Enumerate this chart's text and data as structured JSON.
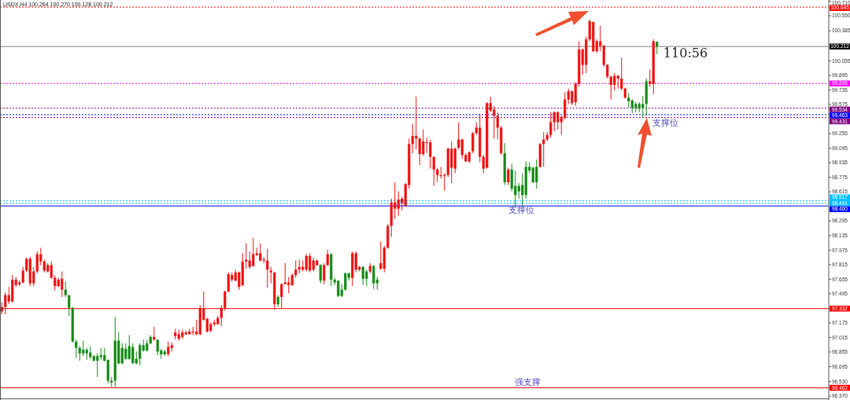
{
  "chart_data": {
    "type": "candlestick",
    "title": "USDX,H4  100.264 100.270 100.128 100.212",
    "categories": [
      null,
      null,
      null,
      null,
      null,
      null,
      null,
      null,
      null,
      null,
      null,
      null,
      null,
      null,
      null,
      null,
      null,
      null,
      null,
      null,
      null,
      null,
      null,
      null,
      null,
      null,
      null,
      null,
      null,
      null,
      null,
      null,
      null,
      null,
      null,
      null,
      null,
      null,
      null,
      null,
      null,
      null,
      null,
      null,
      null,
      null,
      null,
      null,
      null,
      null,
      null,
      null,
      null,
      null,
      null,
      null,
      null,
      null,
      null,
      null,
      null,
      null,
      null,
      null,
      null,
      null,
      null,
      null,
      null,
      null,
      null,
      null,
      null,
      null,
      null,
      null,
      null,
      null,
      null,
      null,
      null,
      null,
      null,
      null,
      null,
      null,
      null,
      null,
      null,
      null,
      null,
      null,
      null,
      null,
      null,
      null,
      null,
      null,
      null,
      null,
      null,
      null,
      null,
      null,
      null,
      null,
      null,
      null,
      null,
      null,
      null,
      null,
      null,
      null,
      null,
      null,
      null,
      null,
      null,
      null,
      null,
      null,
      null,
      null,
      null,
      null,
      null,
      null,
      null,
      null,
      null,
      null,
      null,
      null,
      null,
      null,
      null,
      null,
      null,
      null,
      null,
      null,
      null,
      null,
      null,
      null,
      null,
      null,
      null,
      null,
      null,
      null,
      null,
      null,
      null,
      null,
      null,
      null,
      null,
      null,
      null,
      null,
      null,
      null,
      null,
      null,
      null,
      null,
      null,
      null,
      null,
      null,
      null,
      null,
      null,
      null,
      null,
      null,
      null,
      null,
      null,
      null,
      null,
      null,
      null,
      null,
      null,
      null,
      null,
      null,
      null,
      null,
      null,
      null,
      null,
      null,
      null,
      null,
      null,
      null,
      null,
      null,
      null,
      null,
      null,
      null,
      null,
      null,
      null,
      null,
      null,
      null,
      null,
      null,
      null,
      null,
      null,
      null,
      null,
      null,
      null,
      null,
      null,
      null,
      null,
      null,
      null,
      null,
      null,
      null,
      null,
      null,
      null,
      null
    ],
    "ohlc": [
      [
        97.3,
        97.4,
        97.27,
        97.35
      ],
      [
        97.35,
        97.51,
        97.27,
        97.48
      ],
      [
        97.41,
        97.57,
        97.38,
        97.48
      ],
      [
        97.41,
        97.7,
        97.4,
        97.65
      ],
      [
        97.59,
        97.68,
        97.57,
        97.65
      ],
      [
        97.6,
        97.64,
        97.58,
        97.62
      ],
      [
        97.62,
        97.79,
        97.61,
        97.75
      ],
      [
        97.75,
        97.89,
        97.73,
        97.88
      ],
      [
        97.61,
        97.9,
        97.58,
        97.88
      ],
      [
        97.61,
        97.79,
        97.58,
        97.74
      ],
      [
        97.74,
        97.96,
        97.72,
        97.93
      ],
      [
        97.85,
        98.0,
        97.81,
        97.93
      ],
      [
        97.75,
        97.87,
        97.73,
        97.85
      ],
      [
        97.74,
        97.83,
        97.73,
        97.81
      ],
      [
        97.67,
        97.85,
        97.66,
        97.81
      ],
      [
        97.58,
        97.7,
        97.53,
        97.67
      ],
      [
        97.58,
        97.67,
        97.57,
        97.65
      ],
      [
        97.54,
        97.74,
        97.46,
        97.66
      ],
      [
        97.54,
        97.63,
        97.46,
        97.48
      ],
      [
        97.48,
        97.48,
        97.25,
        97.34
      ],
      [
        97.34,
        97.35,
        96.96,
        96.97
      ],
      [
        96.97,
        96.99,
        96.79,
        96.9
      ],
      [
        96.9,
        96.92,
        96.76,
        96.84
      ],
      [
        96.88,
        96.98,
        96.81,
        96.84
      ],
      [
        96.88,
        96.9,
        96.77,
        96.84
      ],
      [
        96.85,
        96.92,
        96.78,
        96.8
      ],
      [
        96.81,
        96.82,
        96.75,
        96.76
      ],
      [
        96.81,
        96.84,
        96.58,
        96.76
      ],
      [
        96.82,
        96.9,
        96.77,
        96.8
      ],
      [
        96.82,
        96.9,
        96.75,
        96.76
      ],
      [
        96.77,
        96.77,
        96.51,
        96.54
      ],
      [
        96.54,
        96.58,
        96.47,
        96.52
      ],
      [
        96.98,
        97.24,
        96.47,
        96.54
      ],
      [
        96.98,
        97.07,
        96.72,
        96.73
      ],
      [
        96.9,
        96.95,
        96.72,
        96.73
      ],
      [
        96.89,
        96.95,
        96.77,
        96.78
      ],
      [
        96.92,
        97.04,
        96.77,
        96.78
      ],
      [
        96.91,
        96.95,
        96.73,
        96.73
      ],
      [
        96.78,
        96.86,
        96.72,
        96.73
      ],
      [
        96.93,
        96.95,
        96.71,
        96.78
      ],
      [
        96.93,
        96.99,
        96.86,
        96.87
      ],
      [
        96.95,
        96.99,
        96.86,
        96.87
      ],
      [
        97.02,
        97.04,
        96.94,
        96.95
      ],
      [
        96.99,
        97.13,
        96.98,
        97.02
      ],
      [
        96.99,
        96.99,
        96.82,
        96.86
      ],
      [
        96.87,
        96.89,
        96.78,
        96.83
      ],
      [
        96.86,
        96.88,
        96.81,
        96.83
      ],
      [
        96.83,
        96.97,
        96.81,
        96.91
      ],
      [
        96.9,
        96.96,
        96.86,
        96.93
      ],
      [
        97.03,
        97.11,
        96.99,
        97.07
      ],
      [
        97.0,
        97.1,
        96.98,
        97.05
      ],
      [
        97.02,
        97.1,
        97.0,
        97.07
      ],
      [
        97.05,
        97.09,
        97.04,
        97.07
      ],
      [
        97.05,
        97.11,
        97.05,
        97.08
      ],
      [
        97.07,
        97.13,
        97.04,
        97.08
      ],
      [
        97.05,
        97.21,
        97.04,
        97.08
      ],
      [
        97.05,
        97.37,
        97.04,
        97.33
      ],
      [
        97.21,
        97.52,
        97.2,
        97.33
      ],
      [
        97.08,
        97.23,
        97.07,
        97.22
      ],
      [
        97.09,
        97.18,
        97.07,
        97.16
      ],
      [
        97.16,
        97.21,
        97.14,
        97.18
      ],
      [
        97.16,
        97.25,
        97.16,
        97.23
      ],
      [
        97.23,
        97.37,
        97.14,
        97.34
      ],
      [
        97.34,
        97.53,
        97.31,
        97.52
      ],
      [
        97.52,
        97.73,
        97.51,
        97.71
      ],
      [
        97.65,
        97.73,
        97.63,
        97.7
      ],
      [
        97.64,
        97.76,
        97.63,
        97.73
      ],
      [
        97.57,
        97.74,
        97.54,
        97.73
      ],
      [
        97.59,
        97.94,
        97.58,
        97.85
      ],
      [
        97.85,
        98.05,
        97.77,
        97.87
      ],
      [
        97.79,
        97.96,
        97.77,
        97.86
      ],
      [
        97.8,
        98.11,
        97.79,
        97.93
      ],
      [
        97.92,
        98.0,
        97.91,
        97.94
      ],
      [
        97.86,
        98.05,
        97.85,
        97.94
      ],
      [
        97.86,
        97.9,
        97.83,
        97.87
      ],
      [
        97.76,
        97.99,
        97.56,
        97.86
      ],
      [
        97.73,
        97.79,
        97.61,
        97.75
      ],
      [
        97.38,
        97.73,
        97.32,
        97.73
      ],
      [
        97.46,
        97.48,
        97.35,
        97.38
      ],
      [
        97.46,
        97.61,
        97.34,
        97.6
      ],
      [
        97.6,
        97.83,
        97.6,
        97.62
      ],
      [
        97.59,
        97.68,
        97.5,
        97.62
      ],
      [
        97.59,
        97.72,
        97.58,
        97.7
      ],
      [
        97.7,
        97.86,
        97.67,
        97.76
      ],
      [
        97.76,
        97.87,
        97.72,
        97.79
      ],
      [
        97.76,
        97.86,
        97.74,
        97.79
      ],
      [
        97.76,
        97.93,
        97.74,
        97.91
      ],
      [
        97.75,
        97.94,
        97.73,
        97.91
      ],
      [
        97.76,
        97.89,
        97.74,
        97.86
      ],
      [
        97.81,
        97.87,
        97.8,
        97.86
      ],
      [
        97.81,
        97.82,
        97.61,
        97.64
      ],
      [
        97.64,
        97.83,
        97.6,
        97.81
      ],
      [
        97.81,
        97.98,
        97.8,
        97.93
      ],
      [
        97.93,
        97.94,
        97.58,
        97.65
      ],
      [
        97.65,
        97.67,
        97.59,
        97.62
      ],
      [
        97.64,
        97.64,
        97.46,
        97.47
      ],
      [
        97.54,
        97.6,
        97.46,
        97.47
      ],
      [
        97.72,
        97.73,
        97.53,
        97.54
      ],
      [
        97.72,
        97.73,
        97.64,
        97.67
      ],
      [
        97.67,
        97.96,
        97.58,
        97.94
      ],
      [
        97.76,
        97.96,
        97.73,
        97.94
      ],
      [
        97.76,
        97.8,
        97.74,
        97.79
      ],
      [
        97.79,
        97.8,
        97.59,
        97.66
      ],
      [
        97.74,
        97.76,
        97.58,
        97.66
      ],
      [
        97.74,
        97.83,
        97.72,
        97.8
      ],
      [
        97.8,
        97.81,
        97.55,
        97.61
      ],
      [
        97.65,
        97.68,
        97.54,
        97.61
      ],
      [
        97.77,
        98.07,
        97.76,
        97.83
      ],
      [
        97.77,
        98.02,
        97.73,
        98.0
      ],
      [
        98.0,
        98.26,
        97.99,
        98.24
      ],
      [
        98.24,
        98.54,
        98.12,
        98.5
      ],
      [
        98.43,
        98.72,
        98.32,
        98.5
      ],
      [
        98.43,
        98.62,
        98.35,
        98.53
      ],
      [
        98.49,
        98.56,
        98.41,
        98.54
      ],
      [
        98.46,
        98.71,
        98.45,
        98.7
      ],
      [
        98.69,
        99.2,
        98.65,
        99.14
      ],
      [
        99.14,
        99.36,
        99.04,
        99.23
      ],
      [
        99.2,
        99.66,
        99.08,
        99.23
      ],
      [
        99.03,
        99.21,
        98.91,
        99.2
      ],
      [
        99.03,
        99.3,
        99.01,
        99.17
      ],
      [
        99.15,
        99.21,
        99.04,
        99.16
      ],
      [
        99.0,
        99.19,
        98.87,
        99.16
      ],
      [
        98.86,
        99.0,
        98.68,
        99.0
      ],
      [
        98.8,
        98.88,
        98.72,
        98.86
      ],
      [
        98.79,
        98.89,
        98.76,
        98.8
      ],
      [
        98.79,
        98.82,
        98.63,
        98.8
      ],
      [
        98.8,
        99.1,
        98.78,
        99.09
      ],
      [
        98.88,
        99.17,
        98.71,
        99.09
      ],
      [
        98.87,
        99.1,
        98.82,
        99.09
      ],
      [
        99.1,
        99.38,
        99.08,
        99.19
      ],
      [
        99.02,
        99.2,
        98.98,
        99.19
      ],
      [
        98.95,
        99.04,
        98.94,
        99.02
      ],
      [
        98.95,
        99.06,
        98.93,
        99.05
      ],
      [
        99.06,
        99.27,
        99.04,
        99.26
      ],
      [
        99.26,
        99.38,
        99.24,
        99.32
      ],
      [
        99.0,
        99.47,
        98.94,
        99.32
      ],
      [
        98.87,
        99.02,
        98.82,
        99.0
      ],
      [
        98.88,
        99.6,
        98.87,
        99.59
      ],
      [
        99.51,
        99.66,
        99.49,
        99.59
      ],
      [
        99.45,
        99.56,
        99.2,
        99.52
      ],
      [
        99.32,
        99.49,
        99.19,
        99.45
      ],
      [
        99.04,
        99.34,
        99.02,
        99.32
      ],
      [
        99.04,
        99.15,
        98.69,
        98.72
      ],
      [
        98.72,
        98.88,
        98.69,
        98.86
      ],
      [
        98.86,
        98.92,
        98.62,
        98.65
      ],
      [
        98.68,
        98.85,
        98.45,
        98.58
      ],
      [
        98.68,
        98.71,
        98.54,
        98.62
      ],
      [
        98.69,
        98.82,
        98.46,
        98.58
      ],
      [
        98.89,
        98.95,
        98.54,
        98.58
      ],
      [
        98.89,
        98.94,
        98.82,
        98.85
      ],
      [
        98.88,
        98.89,
        98.71,
        98.72
      ],
      [
        98.89,
        98.97,
        98.65,
        98.72
      ],
      [
        98.89,
        99.15,
        98.88,
        99.14
      ],
      [
        99.14,
        99.27,
        98.89,
        99.19
      ],
      [
        99.19,
        99.27,
        99.17,
        99.24
      ],
      [
        99.24,
        99.49,
        99.21,
        99.38
      ],
      [
        99.38,
        99.5,
        99.28,
        99.49
      ],
      [
        99.38,
        99.5,
        99.3,
        99.49
      ],
      [
        99.38,
        99.45,
        99.24,
        99.44
      ],
      [
        99.43,
        99.71,
        99.41,
        99.63
      ],
      [
        99.63,
        99.75,
        99.58,
        99.72
      ],
      [
        99.59,
        99.73,
        99.57,
        99.72
      ],
      [
        99.6,
        99.82,
        99.56,
        99.8
      ],
      [
        99.8,
        100.27,
        99.77,
        100.18
      ],
      [
        100.01,
        100.19,
        99.9,
        100.18
      ],
      [
        100.01,
        100.32,
        99.92,
        100.29
      ],
      [
        100.29,
        100.51,
        100.27,
        100.49
      ],
      [
        100.16,
        100.49,
        100.15,
        100.48
      ],
      [
        100.16,
        100.29,
        100.14,
        100.27
      ],
      [
        100.22,
        100.44,
        100.16,
        100.27
      ],
      [
        100.01,
        100.23,
        99.99,
        100.22
      ],
      [
        99.88,
        100.02,
        99.86,
        100.01
      ],
      [
        99.79,
        99.89,
        99.63,
        99.88
      ],
      [
        99.79,
        99.92,
        99.73,
        99.89
      ],
      [
        99.86,
        99.9,
        99.75,
        99.89
      ],
      [
        99.75,
        100.09,
        99.73,
        99.86
      ],
      [
        99.65,
        99.76,
        99.64,
        99.75
      ],
      [
        99.65,
        99.7,
        99.54,
        99.61
      ],
      [
        99.62,
        99.63,
        99.48,
        99.54
      ],
      [
        99.58,
        99.6,
        99.49,
        99.54
      ],
      [
        99.58,
        99.6,
        99.49,
        99.53
      ],
      [
        99.58,
        99.67,
        99.43,
        99.54
      ],
      [
        99.83,
        99.86,
        99.45,
        99.58
      ],
      [
        99.8,
        99.96,
        99.77,
        99.83
      ],
      [
        99.8,
        100.29,
        99.69,
        100.27
      ],
      [
        100.264,
        100.27,
        100.128,
        100.212
      ],
      null,
      null,
      null,
      null,
      null,
      null,
      null,
      null,
      null,
      null,
      null,
      null,
      null,
      null,
      null,
      null,
      null,
      null,
      null,
      null,
      null,
      null,
      null,
      null,
      null,
      null,
      null,
      null,
      null,
      null,
      null,
      null,
      null,
      null,
      null,
      null,
      null,
      null,
      null,
      null,
      null,
      null,
      null,
      null,
      null,
      null,
      null,
      null
    ],
    "colors": [
      "#ee1111",
      "#ee1111",
      "#ee1111",
      "#ee1111",
      "#ee1111",
      "#ee1111",
      "#ee1111",
      "#ee1111",
      "#ee1111",
      "#ee1111",
      "#ee1111",
      "#ee1111",
      "#ee1111",
      "#ee1111",
      "#ee1111",
      "#ee1111",
      "#ee1111",
      "#ee1111",
      "#148a14",
      "#148a14",
      "#148a14",
      "#148a14",
      "#148a14",
      "#148a14",
      "#148a14",
      "#148a14",
      "#148a14",
      "#148a14",
      "#148a14",
      "#148a14",
      "#148a14",
      "#148a14",
      "#148a14",
      "#148a14",
      "#148a14",
      "#148a14",
      "#148a14",
      "#148a14",
      "#148a14",
      "#148a14",
      "#148a14",
      "#148a14",
      "#148a14",
      "#ee1111",
      "#148a14",
      "#148a14",
      "#148a14",
      "#ee1111",
      "#ee1111",
      "#ee1111",
      "#ee1111",
      "#ee1111",
      "#ee1111",
      "#ee1111",
      "#ee1111",
      "#ee1111",
      "#ee1111",
      "#ee1111",
      "#ee1111",
      "#ee1111",
      "#ee1111",
      "#ee1111",
      "#ee1111",
      "#ee1111",
      "#ee1111",
      "#ee1111",
      "#ee1111",
      "#ee1111",
      "#ee1111",
      "#ee1111",
      "#ee1111",
      "#ee1111",
      "#ee1111",
      "#ee1111",
      "#ee1111",
      "#ee1111",
      "#ee1111",
      "#ee1111",
      "#148a14",
      "#ee1111",
      "#ee1111",
      "#ee1111",
      "#ee1111",
      "#ee1111",
      "#ee1111",
      "#ee1111",
      "#ee1111",
      "#ee1111",
      "#ee1111",
      "#ee1111",
      "#148a14",
      "#ee1111",
      "#ee1111",
      "#148a14",
      "#148a14",
      "#148a14",
      "#148a14",
      "#148a14",
      "#148a14",
      "#ee1111",
      "#ee1111",
      "#ee1111",
      "#148a14",
      "#148a14",
      "#ee1111",
      "#148a14",
      "#148a14",
      "#ee1111",
      "#ee1111",
      "#ee1111",
      "#ee1111",
      "#ee1111",
      "#ee1111",
      "#ee1111",
      "#ee1111",
      "#ee1111",
      "#ee1111",
      "#ee1111",
      "#ee1111",
      "#ee1111",
      "#ee1111",
      "#ee1111",
      "#ee1111",
      "#ee1111",
      "#ee1111",
      "#ee1111",
      "#ee1111",
      "#ee1111",
      "#ee1111",
      "#ee1111",
      "#ee1111",
      "#ee1111",
      "#ee1111",
      "#ee1111",
      "#ee1111",
      "#ee1111",
      "#ee1111",
      "#ee1111",
      "#ee1111",
      "#ee1111",
      "#ee1111",
      "#ee1111",
      "#148a14",
      "#ee1111",
      "#148a14",
      "#148a14",
      "#148a14",
      "#148a14",
      "#148a14",
      "#148a14",
      "#148a14",
      "#148a14",
      "#ee1111",
      "#ee1111",
      "#ee1111",
      "#ee1111",
      "#ee1111",
      "#ee1111",
      "#ee1111",
      "#ee1111",
      "#ee1111",
      "#ee1111",
      "#ee1111",
      "#ee1111",
      "#ee1111",
      "#ee1111",
      "#ee1111",
      "#ee1111",
      "#ee1111",
      "#ee1111",
      "#ee1111",
      "#ee1111",
      "#ee1111",
      "#ee1111",
      "#ee1111",
      "#ee1111",
      "#ee1111",
      "#148a14",
      "#148a14",
      "#148a14",
      "#148a14",
      "#148a14",
      "#148a14",
      "#ee1111",
      "#ee1111",
      "#148a14",
      null,
      null,
      null,
      null,
      null,
      null,
      null,
      null,
      null,
      null,
      null,
      null,
      null,
      null,
      null,
      null,
      null,
      null,
      null,
      null,
      null,
      null,
      null,
      null,
      null,
      null,
      null,
      null,
      null,
      null,
      null,
      null,
      null,
      null,
      null,
      null,
      null,
      null,
      null,
      null,
      null,
      null,
      null,
      null,
      null,
      null,
      null,
      null
    ],
    "ylim": [
      96.345,
      100.723
    ],
    "yticks": [
      {
        "value": 100.71,
        "label": "100.710"
      },
      {
        "value": 100.55,
        "label": "100.550"
      },
      100.385,
      100.055,
      99.895,
      99.735,
      99.575,
      99.255,
      99.095,
      98.935,
      98.775,
      98.615,
      98.295,
      98.135,
      97.975,
      97.815,
      97.655,
      97.495,
      97.175,
      97.015,
      96.855,
      96.695,
      {
        "value": 96.53,
        "label": "96.530"
      },
      {
        "value": 96.37,
        "label": "96.370"
      }
    ],
    "ref_lines": [
      {
        "axis": "y",
        "value": 100.645,
        "label": "100.645",
        "color": "#ff0000",
        "line_style": "dotted"
      },
      {
        "axis": "y",
        "value": 100.212,
        "label": "100.212",
        "color": "#808080",
        "line_style": "solid"
      },
      {
        "axis": "y",
        "value": 99.806,
        "label": "99.806",
        "color": "#ff00ff",
        "line_style": "dotted"
      },
      {
        "axis": "y",
        "value": 99.534,
        "label": "99.534",
        "color": "#800080",
        "line_style": "dotted"
      },
      {
        "axis": "y",
        "value": 99.463,
        "label": "99.463",
        "color": "#0000ff",
        "line_style": "dotted"
      },
      {
        "axis": "y",
        "value": 99.431,
        "label": "99.431",
        "color": "#800080",
        "line_style": "dotted"
      },
      {
        "axis": "y",
        "value": 98.517,
        "label": "98.517",
        "color": "#00bfff",
        "line_style": "dotted"
      },
      {
        "axis": "y",
        "value": 98.491,
        "label": "98.491",
        "color": "#00bfff",
        "line_style": "dotted"
      },
      {
        "axis": "y",
        "value": 98.46,
        "label": "98.460",
        "color": "#0000ff",
        "line_style": "solid"
      },
      {
        "axis": "y",
        "value": 97.332,
        "label": "97.332",
        "color": "#ff0000",
        "line_style": "solid"
      },
      {
        "axis": "y",
        "value": 96.462,
        "label": "96.462",
        "color": "#ff0000",
        "line_style": "solid"
      }
    ],
    "annotations": [
      "支撑位",
      "支撑位",
      "强支撑",
      "110:56"
    ],
    "tick_labels": "y",
    "grid": false
  }
}
